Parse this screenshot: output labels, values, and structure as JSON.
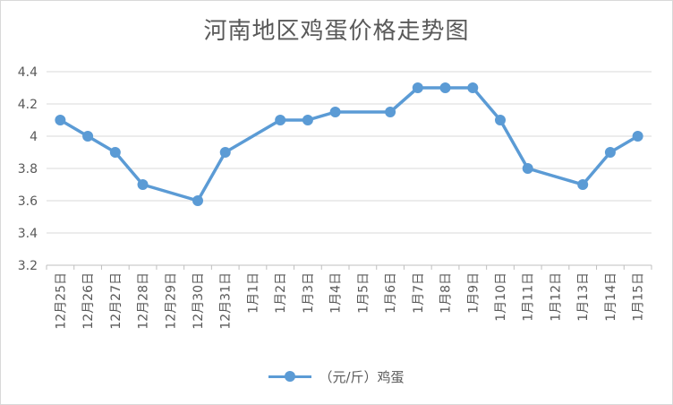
{
  "chart_data": {
    "type": "line",
    "title": "河南地区鸡蛋价格走势图",
    "categories": [
      "12月25日",
      "12月26日",
      "12月27日",
      "12月28日",
      "12月29日",
      "12月30日",
      "12月31日",
      "1月1日",
      "1月2日",
      "1月3日",
      "1月4日",
      "1月5日",
      "1月6日",
      "1月7日",
      "1月8日",
      "1月9日",
      "1月10日",
      "1月11日",
      "1月12日",
      "1月13日",
      "1月14日",
      "1月15日"
    ],
    "series": [
      {
        "name": "（元/斤）鸡蛋",
        "values": [
          4.1,
          4.0,
          3.9,
          3.7,
          null,
          3.6,
          3.9,
          null,
          4.1,
          4.1,
          4.15,
          null,
          4.15,
          4.3,
          4.3,
          4.3,
          4.1,
          3.8,
          null,
          3.7,
          3.9,
          4.0
        ]
      }
    ],
    "ylim": [
      3.2,
      4.4
    ],
    "yticks": [
      "3.2",
      "3.4",
      "3.6",
      "3.8",
      "4",
      "4.2",
      "4.4"
    ],
    "grid": true,
    "legend_position": "bottom",
    "colors": {
      "series": "#5b9bd5",
      "grid": "#d9d9d9",
      "axis": "#bfbfbf",
      "text": "#595959"
    }
  }
}
